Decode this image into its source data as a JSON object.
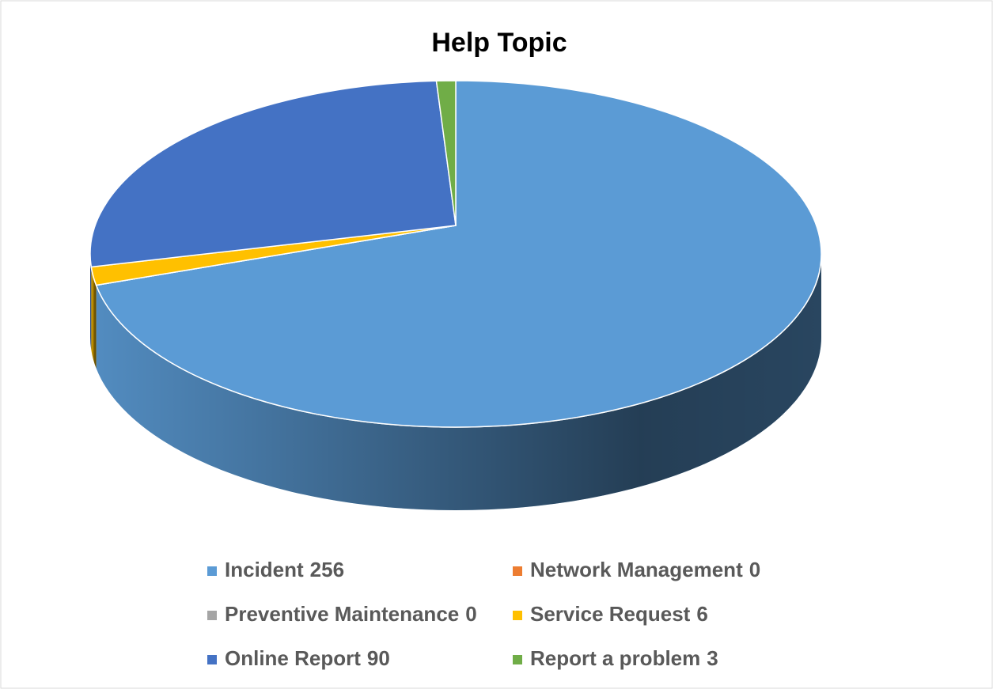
{
  "chart_data": {
    "type": "pie",
    "title": "Help Topic",
    "categories": [
      "Incident",
      "Network Management",
      "Preventive Maintenance",
      "Service Request",
      "Online Report",
      "Report a problem"
    ],
    "values": [
      256,
      0,
      0,
      6,
      90,
      3
    ],
    "colors": [
      "#5b9bd5",
      "#ed7d31",
      "#a5a5a5",
      "#ffc000",
      "#4472c4",
      "#70ad47"
    ],
    "legend": "bottom"
  }
}
